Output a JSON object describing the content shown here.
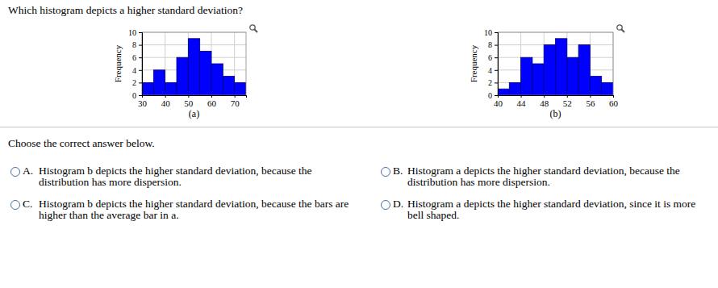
{
  "question": "Which histogram depicts a higher standard deviation?",
  "chart_data": [
    {
      "type": "histogram",
      "xlabel": "(a)",
      "ylabel": "Frequency",
      "bins": [
        30,
        35,
        40,
        45,
        50,
        55,
        60,
        65,
        70,
        75
      ],
      "counts": [
        2,
        4,
        2,
        6,
        9,
        7,
        5,
        3,
        2
      ],
      "color": "#0000ff",
      "xlim": [
        30,
        75
      ],
      "xticks": [
        30,
        40,
        50,
        60,
        70
      ],
      "ylim": [
        0,
        10
      ],
      "yticks": [
        0,
        2,
        4,
        6,
        8,
        10
      ],
      "grid": true
    },
    {
      "type": "histogram",
      "xlabel": "(b)",
      "ylabel": "Frequency",
      "bins": [
        40,
        42,
        44,
        46,
        48,
        50,
        52,
        54,
        56,
        58,
        60
      ],
      "counts": [
        1,
        2,
        6,
        5,
        8,
        9,
        6,
        8,
        3,
        2
      ],
      "color": "#0000ff",
      "xlim": [
        40,
        60
      ],
      "xticks": [
        40,
        44,
        48,
        52,
        56,
        60
      ],
      "ylim": [
        0,
        10
      ],
      "yticks": [
        0,
        2,
        4,
        6,
        8,
        10
      ],
      "grid": true
    }
  ],
  "prompt": "Choose the correct answer below.",
  "options": [
    {
      "label": "A.",
      "text": "Histogram b depicts the higher standard deviation, because the distribution has more dispersion."
    },
    {
      "label": "B.",
      "text": "Histogram a depicts the higher standard deviation, because the distribution has more dispersion."
    },
    {
      "label": "C.",
      "text": "Histogram b depicts the higher standard deviation, because the bars are higher than the average bar in a."
    },
    {
      "label": "D.",
      "text": "Histogram a depicts the higher standard deviation, since it is more bell shaped."
    }
  ]
}
